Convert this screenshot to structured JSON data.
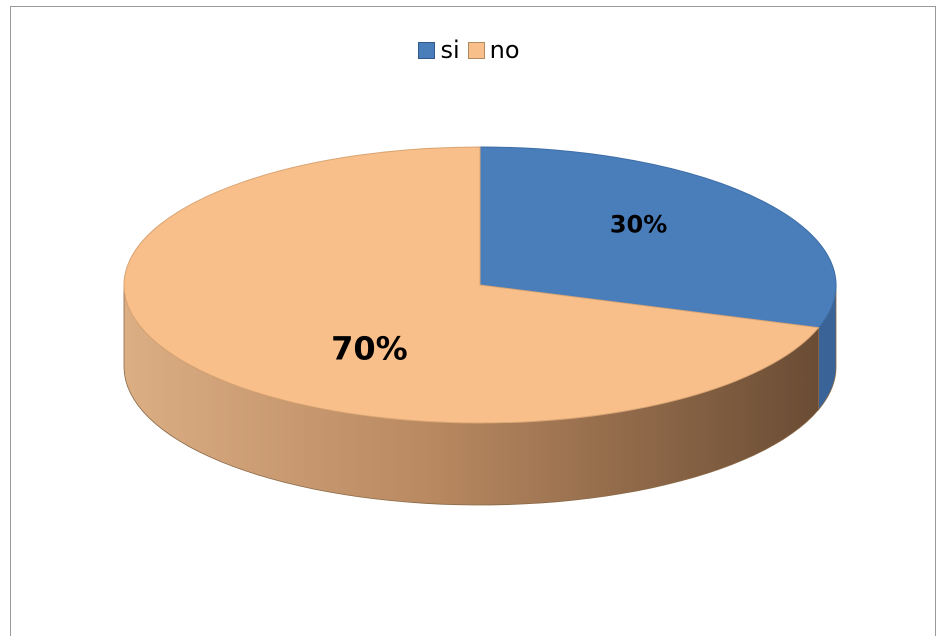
{
  "chart_data": {
    "type": "pie",
    "style": "3d",
    "categories": [
      "si",
      "no"
    ],
    "values": [
      30,
      70
    ],
    "data_labels": [
      "30%",
      "70%"
    ],
    "colors": [
      "#4a7ebb",
      "#f9bf8a"
    ],
    "side_colors": [
      "#3a6498",
      "#c9976a"
    ],
    "title": "",
    "legend_position": "top"
  },
  "legend": {
    "items": [
      {
        "label": "si",
        "color": "#4a7ebb"
      },
      {
        "label": "no",
        "color": "#f9bf8a"
      }
    ]
  }
}
